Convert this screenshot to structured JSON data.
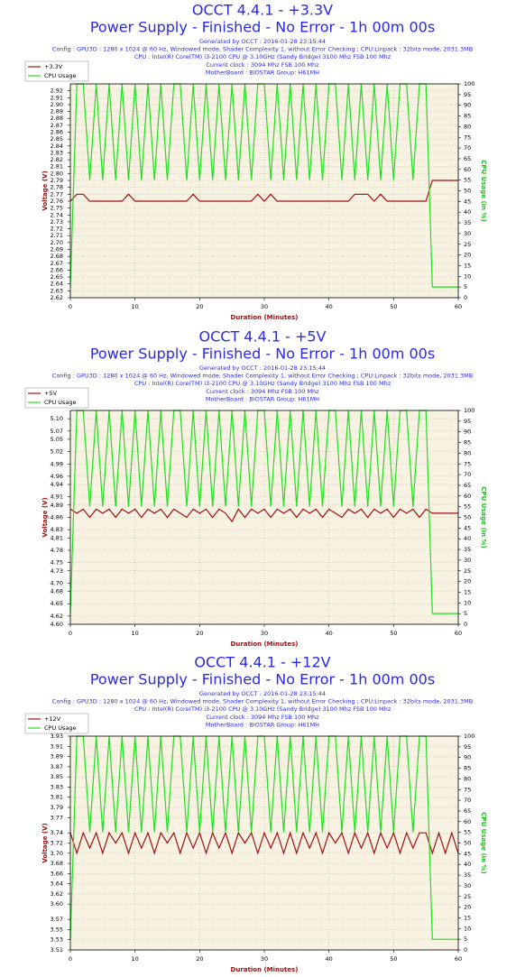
{
  "chart_data": [
    {
      "type": "line",
      "title": "OCCT 4.4.1 - +3.3V",
      "subtitle": "Power Supply - Finished - No Error - 1h 00m 00s",
      "notes": [
        "Generated by OCCT : 2016-01-28 23:15:44",
        "Config : GPU3D : 1280 x 1024 @ 60 Hz, Windowed mode, Shader Complexity 1, without Error Checking ; CPU:Linpack : 32bits mode, 2031.3MB",
        "CPU : Intel(R) Core(TM) i3-2100 CPU @ 3.10GHz (Sandy Bridge) 3100 Mhz FSB 100 Mhz",
        "Current clock : 3094 Mhz FSB 100 Mhz",
        "MotherBoard : BIOSTAR Group: H61MH"
      ],
      "xlabel": "Duration (Minutes)",
      "ylabel": "Voltage (V)",
      "y2label": "CPU Usage (in %)",
      "x": [
        0,
        1,
        2,
        3,
        4,
        5,
        6,
        7,
        8,
        9,
        10,
        11,
        12,
        13,
        14,
        15,
        16,
        17,
        18,
        19,
        20,
        21,
        22,
        23,
        24,
        25,
        26,
        27,
        28,
        29,
        30,
        31,
        32,
        33,
        34,
        35,
        36,
        37,
        38,
        39,
        40,
        41,
        42,
        43,
        44,
        45,
        46,
        47,
        48,
        49,
        50,
        51,
        52,
        53,
        54,
        55,
        56,
        57,
        58,
        59,
        60
      ],
      "series": [
        {
          "name": "+3.3V",
          "color": "#a01010",
          "values": [
            2.76,
            2.77,
            2.77,
            2.76,
            2.76,
            2.76,
            2.76,
            2.76,
            2.76,
            2.77,
            2.76,
            2.76,
            2.76,
            2.76,
            2.76,
            2.76,
            2.76,
            2.76,
            2.76,
            2.77,
            2.76,
            2.76,
            2.76,
            2.76,
            2.76,
            2.76,
            2.76,
            2.76,
            2.76,
            2.77,
            2.76,
            2.77,
            2.76,
            2.76,
            2.76,
            2.76,
            2.76,
            2.76,
            2.76,
            2.76,
            2.76,
            2.76,
            2.76,
            2.76,
            2.77,
            2.77,
            2.77,
            2.76,
            2.77,
            2.76,
            2.76,
            2.76,
            2.76,
            2.76,
            2.76,
            2.76,
            2.79,
            2.79,
            2.79,
            2.79,
            2.79
          ]
        },
        {
          "name": "CPU Usage",
          "color": "#22dd22",
          "axis": "y2",
          "values": [
            5,
            100,
            100,
            55,
            100,
            55,
            100,
            55,
            100,
            55,
            100,
            55,
            100,
            55,
            100,
            55,
            100,
            100,
            55,
            100,
            55,
            100,
            55,
            100,
            55,
            100,
            55,
            100,
            55,
            100,
            100,
            55,
            100,
            55,
            100,
            55,
            100,
            55,
            100,
            55,
            100,
            100,
            55,
            100,
            55,
            100,
            55,
            100,
            55,
            100,
            55,
            100,
            100,
            55,
            100,
            100,
            5,
            5,
            5,
            5,
            5
          ]
        }
      ],
      "xlim": [
        0,
        60
      ],
      "xticks": [
        0,
        10,
        20,
        30,
        40,
        50,
        60
      ],
      "ylim": [
        2.62,
        2.93
      ],
      "yticks": [
        2.62,
        2.63,
        2.64,
        2.65,
        2.66,
        2.67,
        2.68,
        2.69,
        {
          "value": 2.7,
          "label": "2.70"
        },
        2.71,
        2.72,
        2.73,
        2.74,
        2.75,
        2.76,
        2.77,
        2.78,
        2.79,
        {
          "value": 2.8,
          "label": "2.80"
        },
        2.81,
        2.82,
        2.83,
        2.84,
        2.85,
        2.86,
        2.87,
        2.88,
        2.89,
        {
          "value": 2.9,
          "label": "2.90"
        },
        2.91,
        2.92
      ],
      "y2lim": [
        0,
        100
      ],
      "y2ticks": [
        0,
        5,
        10,
        15,
        20,
        25,
        30,
        35,
        40,
        45,
        50,
        55,
        60,
        65,
        70,
        75,
        80,
        85,
        90,
        95,
        100
      ],
      "grid": true
    },
    {
      "type": "line",
      "title": "OCCT 4.4.1 - +5V",
      "subtitle": "Power Supply - Finished - No Error - 1h 00m 00s",
      "notes": [
        "Generated by OCCT : 2016-01-28 23:15:44",
        "Config : GPU3D : 1280 x 1024 @ 60 Hz, Windowed mode, Shader Complexity 1, without Error Checking ; CPU:Linpack : 32bits mode, 2031.3MB",
        "CPU : Intel(R) Core(TM) i3-2100 CPU @ 3.10GHz (Sandy Bridge) 3100 Mhz FSB 100 Mhz",
        "Current clock : 3094 Mhz FSB 100 Mhz",
        "MotherBoard : BIOSTAR Group: H61MH"
      ],
      "xlabel": "Duration (Minutes)",
      "ylabel": "Voltage (V)",
      "y2label": "CPU Usage (in %)",
      "x": [
        0,
        1,
        2,
        3,
        4,
        5,
        6,
        7,
        8,
        9,
        10,
        11,
        12,
        13,
        14,
        15,
        16,
        17,
        18,
        19,
        20,
        21,
        22,
        23,
        24,
        25,
        26,
        27,
        28,
        29,
        30,
        31,
        32,
        33,
        34,
        35,
        36,
        37,
        38,
        39,
        40,
        41,
        42,
        43,
        44,
        45,
        46,
        47,
        48,
        49,
        50,
        51,
        52,
        53,
        54,
        55,
        56,
        57,
        58,
        59,
        60
      ],
      "series": [
        {
          "name": "+5V",
          "color": "#a01010",
          "values": [
            4.88,
            4.87,
            4.88,
            4.86,
            4.88,
            4.87,
            4.88,
            4.86,
            4.88,
            4.87,
            4.88,
            4.86,
            4.88,
            4.87,
            4.88,
            4.86,
            4.88,
            4.87,
            4.86,
            4.88,
            4.87,
            4.88,
            4.86,
            4.88,
            4.87,
            4.85,
            4.88,
            4.86,
            4.88,
            4.87,
            4.88,
            4.86,
            4.88,
            4.87,
            4.88,
            4.86,
            4.88,
            4.87,
            4.88,
            4.86,
            4.88,
            4.87,
            4.86,
            4.88,
            4.87,
            4.88,
            4.86,
            4.88,
            4.87,
            4.88,
            4.86,
            4.88,
            4.87,
            4.88,
            4.86,
            4.88,
            4.87,
            4.87,
            4.87,
            4.87,
            4.87
          ]
        },
        {
          "name": "CPU Usage",
          "color": "#22dd22",
          "axis": "y2",
          "values": [
            5,
            100,
            100,
            55,
            100,
            55,
            100,
            55,
            100,
            55,
            100,
            55,
            100,
            55,
            100,
            55,
            100,
            100,
            55,
            100,
            55,
            100,
            55,
            100,
            55,
            100,
            55,
            100,
            55,
            100,
            100,
            55,
            100,
            55,
            100,
            55,
            100,
            55,
            100,
            55,
            100,
            100,
            55,
            100,
            55,
            100,
            55,
            100,
            55,
            100,
            55,
            100,
            100,
            55,
            100,
            100,
            5,
            5,
            5,
            5,
            5
          ]
        }
      ],
      "xlim": [
        0,
        60
      ],
      "xticks": [
        0,
        10,
        20,
        30,
        40,
        50,
        60
      ],
      "ylim": [
        4.6,
        5.12
      ],
      "yticks": [
        {
          "value": 4.6,
          "label": "4.60"
        },
        4.62,
        4.65,
        4.68,
        {
          "value": 4.7,
          "label": "4.70"
        },
        4.73,
        4.75,
        4.78,
        4.81,
        4.83,
        4.86,
        4.89,
        4.91,
        4.94,
        4.96,
        4.99,
        5.02,
        5.05,
        5.07,
        {
          "value": 5.1,
          "label": "5.10"
        }
      ],
      "y2lim": [
        0,
        100
      ],
      "y2ticks": [
        0,
        5,
        10,
        15,
        20,
        25,
        30,
        35,
        40,
        45,
        50,
        55,
        60,
        65,
        70,
        75,
        80,
        85,
        90,
        95,
        100
      ],
      "grid": true
    },
    {
      "type": "line",
      "title": "OCCT 4.4.1 - +12V",
      "subtitle": "Power Supply - Finished - No Error - 1h 00m 00s",
      "notes": [
        "Generated by OCCT : 2016-01-28 23:15:44",
        "Config : GPU3D : 1280 x 1024 @ 60 Hz, Windowed mode, Shader Complexity 1, without Error Checking ; CPU:Linpack : 32bits mode, 2031.3MB",
        "CPU : Intel(R) Core(TM) i3-2100 CPU @ 3.10GHz (Sandy Bridge) 3100 Mhz FSB 100 Mhz",
        "Current clock : 3094 Mhz FSB 100 Mhz",
        "MotherBoard : BIOSTAR Group: H61MH"
      ],
      "xlabel": "Duration (Minutes)",
      "ylabel": "Voltage (V)",
      "y2label": "CPU Usage (in %)",
      "x": [
        0,
        1,
        2,
        3,
        4,
        5,
        6,
        7,
        8,
        9,
        10,
        11,
        12,
        13,
        14,
        15,
        16,
        17,
        18,
        19,
        20,
        21,
        22,
        23,
        24,
        25,
        26,
        27,
        28,
        29,
        30,
        31,
        32,
        33,
        34,
        35,
        36,
        37,
        38,
        39,
        40,
        41,
        42,
        43,
        44,
        45,
        46,
        47,
        48,
        49,
        50,
        51,
        52,
        53,
        54,
        55,
        56,
        57,
        58,
        59,
        60
      ],
      "series": [
        {
          "name": "+12V",
          "color": "#a01010",
          "values": [
            3.74,
            3.7,
            3.74,
            3.71,
            3.74,
            3.7,
            3.74,
            3.72,
            3.74,
            3.7,
            3.74,
            3.71,
            3.74,
            3.7,
            3.74,
            3.72,
            3.74,
            3.7,
            3.74,
            3.71,
            3.74,
            3.7,
            3.74,
            3.71,
            3.74,
            3.7,
            3.74,
            3.72,
            3.74,
            3.7,
            3.74,
            3.71,
            3.74,
            3.7,
            3.74,
            3.7,
            3.74,
            3.71,
            3.74,
            3.7,
            3.74,
            3.72,
            3.74,
            3.7,
            3.74,
            3.71,
            3.74,
            3.7,
            3.74,
            3.71,
            3.74,
            3.7,
            3.74,
            3.71,
            3.74,
            3.74,
            3.7,
            3.74,
            3.7,
            3.74,
            3.7
          ]
        },
        {
          "name": "CPU Usage",
          "color": "#22dd22",
          "axis": "y2",
          "values": [
            5,
            100,
            100,
            55,
            100,
            55,
            100,
            55,
            100,
            55,
            100,
            55,
            100,
            55,
            100,
            55,
            100,
            100,
            55,
            100,
            55,
            100,
            55,
            100,
            55,
            100,
            55,
            100,
            55,
            100,
            100,
            55,
            100,
            55,
            100,
            55,
            100,
            55,
            100,
            55,
            100,
            100,
            55,
            100,
            55,
            100,
            55,
            100,
            55,
            100,
            55,
            100,
            100,
            55,
            100,
            100,
            5,
            5,
            5,
            5,
            5
          ]
        }
      ],
      "xlim": [
        0,
        60
      ],
      "xticks": [
        0,
        10,
        20,
        30,
        40,
        50,
        60
      ],
      "ylim": [
        3.51,
        3.93
      ],
      "yticks": [
        3.51,
        3.53,
        3.55,
        3.57,
        {
          "value": 3.6,
          "label": "3.60"
        },
        3.62,
        3.64,
        3.66,
        3.68,
        {
          "value": 3.7,
          "label": "3.70"
        },
        3.72,
        3.74,
        3.77,
        3.79,
        3.81,
        3.83,
        3.85,
        3.87,
        3.89,
        3.91,
        3.93
      ],
      "y2lim": [
        0,
        100
      ],
      "y2ticks": [
        0,
        5,
        10,
        15,
        20,
        25,
        30,
        35,
        40,
        45,
        50,
        55,
        60,
        65,
        70,
        75,
        80,
        85,
        90,
        95,
        100
      ],
      "grid": true
    }
  ]
}
